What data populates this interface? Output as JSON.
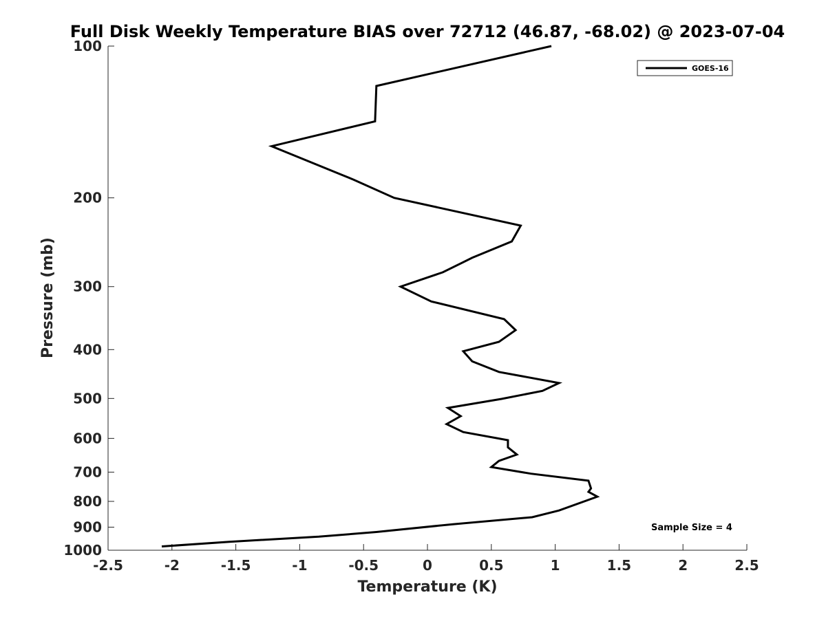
{
  "chart_data": {
    "type": "line",
    "title": "Full Disk Weekly Temperature BIAS over 72712 (46.87, -68.02) @ 2023-07-04",
    "xlabel": "Temperature (K)",
    "ylabel": "Pressure (mb)",
    "xlim": [
      -2.5,
      2.5
    ],
    "ylim": [
      1000,
      100
    ],
    "yscale": "log",
    "grid": false,
    "legend_position": "top-right",
    "x_ticks": [
      -2.5,
      -2,
      -1.5,
      -1,
      -0.5,
      0,
      0.5,
      1,
      1.5,
      2,
      2.5
    ],
    "x_tick_labels": [
      "-2.5",
      "-2",
      "-1.5",
      "-1",
      "-0.5",
      "0",
      "0.5",
      "1",
      "1.5",
      "2",
      "2.5"
    ],
    "y_ticks": [
      100,
      200,
      300,
      400,
      500,
      600,
      700,
      800,
      900,
      1000
    ],
    "y_tick_labels": [
      "100",
      "200",
      "300",
      "400",
      "500",
      "600",
      "700",
      "800",
      "900",
      "1000"
    ],
    "series": [
      {
        "name": "GOES-16",
        "color": "#000000",
        "points": [
          {
            "x": 0.97,
            "y": 100
          },
          {
            "x": -0.4,
            "y": 120
          },
          {
            "x": -0.41,
            "y": 141
          },
          {
            "x": -1.22,
            "y": 158
          },
          {
            "x": -0.58,
            "y": 184
          },
          {
            "x": -0.26,
            "y": 200
          },
          {
            "x": 0.73,
            "y": 227
          },
          {
            "x": 0.66,
            "y": 244
          },
          {
            "x": 0.35,
            "y": 263
          },
          {
            "x": 0.12,
            "y": 281
          },
          {
            "x": -0.21,
            "y": 300
          },
          {
            "x": 0.03,
            "y": 321
          },
          {
            "x": 0.6,
            "y": 348
          },
          {
            "x": 0.69,
            "y": 366
          },
          {
            "x": 0.56,
            "y": 386
          },
          {
            "x": 0.28,
            "y": 403
          },
          {
            "x": 0.35,
            "y": 422
          },
          {
            "x": 0.56,
            "y": 443
          },
          {
            "x": 1.03,
            "y": 466
          },
          {
            "x": 0.9,
            "y": 483
          },
          {
            "x": 0.58,
            "y": 501
          },
          {
            "x": 0.16,
            "y": 522
          },
          {
            "x": 0.26,
            "y": 542
          },
          {
            "x": 0.15,
            "y": 562
          },
          {
            "x": 0.28,
            "y": 583
          },
          {
            "x": 0.63,
            "y": 605
          },
          {
            "x": 0.63,
            "y": 625
          },
          {
            "x": 0.7,
            "y": 646
          },
          {
            "x": 0.56,
            "y": 665
          },
          {
            "x": 0.5,
            "y": 684
          },
          {
            "x": 0.81,
            "y": 705
          },
          {
            "x": 1.26,
            "y": 728
          },
          {
            "x": 1.28,
            "y": 754
          },
          {
            "x": 1.26,
            "y": 766
          },
          {
            "x": 1.33,
            "y": 783
          },
          {
            "x": 1.03,
            "y": 834
          },
          {
            "x": 0.82,
            "y": 860
          },
          {
            "x": 0.2,
            "y": 888
          },
          {
            "x": -0.4,
            "y": 920
          },
          {
            "x": -0.85,
            "y": 940
          },
          {
            "x": -1.55,
            "y": 962
          },
          {
            "x": -2.08,
            "y": 983
          }
        ]
      }
    ],
    "annotations": [
      {
        "text": "Sample Size = 4",
        "x": 2.05,
        "y": 905
      }
    ]
  }
}
